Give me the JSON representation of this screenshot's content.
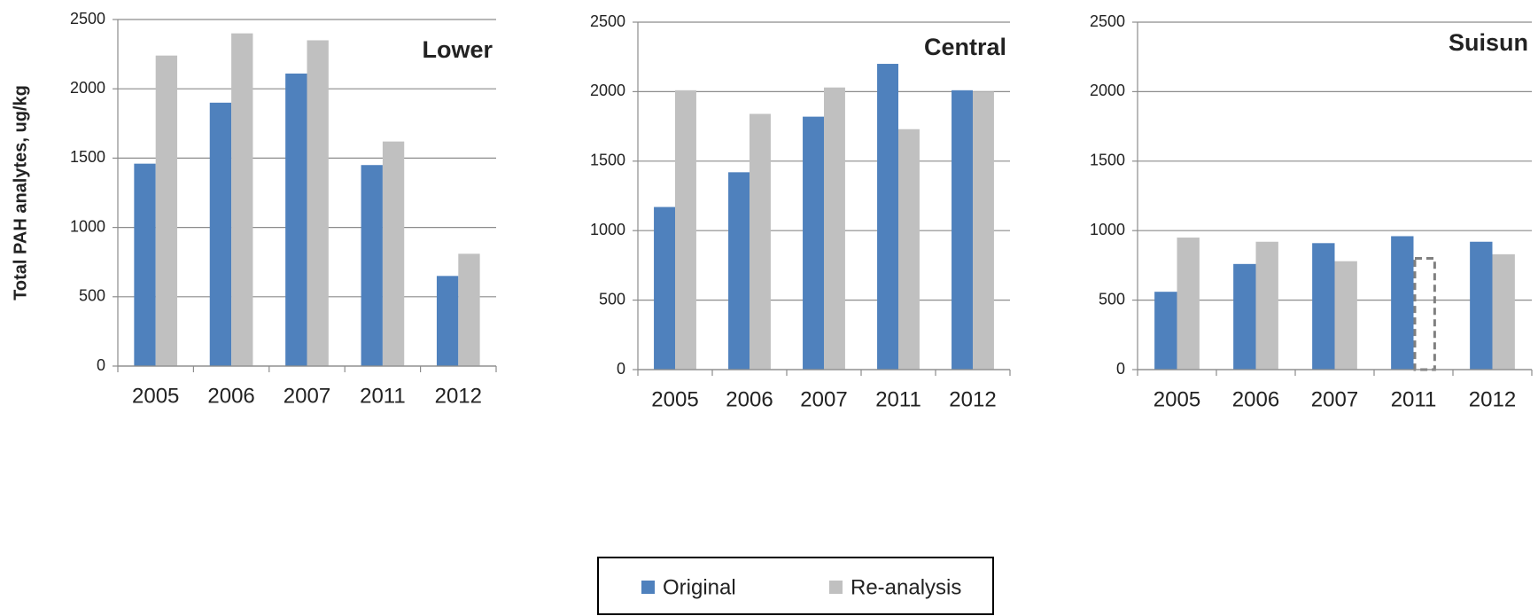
{
  "chart_data": [
    {
      "type": "bar",
      "title": "Lower",
      "y_label": "Total PAH analytes, ug/kg",
      "categories": [
        "2005",
        "2006",
        "2007",
        "2011",
        "2012"
      ],
      "series": [
        {
          "name": "Original",
          "color": "#4f81bd",
          "values": [
            1460,
            1900,
            2110,
            1450,
            650
          ]
        },
        {
          "name": "Re-analysis",
          "color": "#c0c0c0",
          "values": [
            2240,
            2400,
            2350,
            1620,
            810
          ]
        }
      ],
      "ylim": [
        0,
        2500
      ],
      "yticks": [
        0,
        500,
        1000,
        1500,
        2000,
        2500
      ],
      "grid": true
    },
    {
      "type": "bar",
      "title": "Central",
      "categories": [
        "2005",
        "2006",
        "2007",
        "2011",
        "2012"
      ],
      "series": [
        {
          "color": "#4f81bd",
          "values": [
            1170,
            1420,
            1820,
            2200,
            2010
          ]
        },
        {
          "color": "#c0c0c0",
          "values": [
            2010,
            1840,
            2030,
            1730,
            2000
          ]
        }
      ],
      "ylim": [
        0,
        2500
      ],
      "yticks": [
        0,
        500,
        1000,
        1500,
        2000,
        2500
      ],
      "grid": true
    },
    {
      "type": "bar",
      "title": "Suisun",
      "categories": [
        "2005",
        "2006",
        "2007",
        "2011",
        "2012"
      ],
      "series": [
        {
          "color": "#4f81bd",
          "values": [
            560,
            760,
            910,
            960,
            920
          ]
        },
        {
          "color": "#c0c0c0",
          "values": [
            950,
            920,
            780,
            800,
            830
          ],
          "dashed": [
            3
          ]
        }
      ],
      "ylim": [
        0,
        2500
      ],
      "yticks": [
        0,
        500,
        1000,
        1500,
        2000,
        2500
      ],
      "grid": true
    }
  ]
}
